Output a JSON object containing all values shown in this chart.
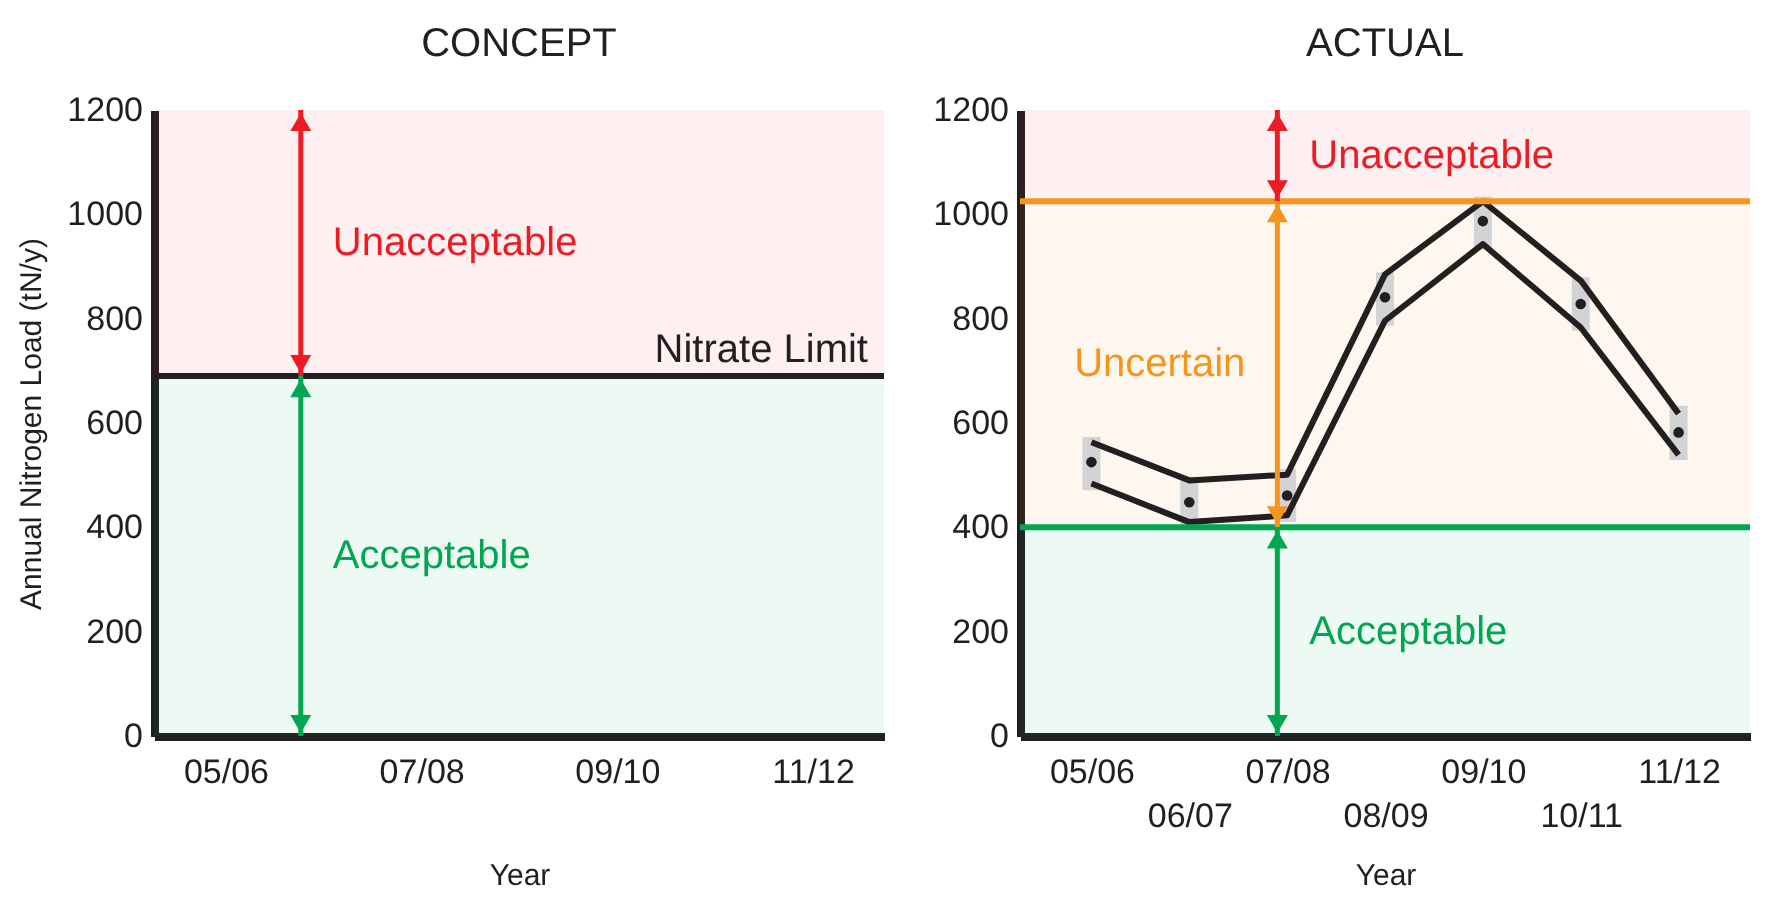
{
  "chart_data": [
    {
      "type": "line",
      "title": "CONCEPT",
      "xlabel": "Year",
      "ylabel": "Annual Nitrogen Load (tN/y)",
      "categories": [
        "05/06",
        null,
        "07/08",
        null,
        "09/10",
        null,
        "11/12"
      ],
      "ylim": [
        0,
        1200
      ],
      "yticks": [
        0,
        200,
        400,
        600,
        800,
        1000,
        1200
      ],
      "ref_lines": [
        {
          "axis": "y",
          "value": 690,
          "label": "Nitrate Limit",
          "color": "#231f20"
        }
      ],
      "bands": [
        {
          "axis": "y",
          "from": 690,
          "to": 1200,
          "label": "Unacceptable",
          "color": "#ed1c24"
        },
        {
          "axis": "y",
          "from": 0,
          "to": 690,
          "label": "Acceptable",
          "color": "#00a651"
        }
      ]
    },
    {
      "type": "line",
      "title": "ACTUAL",
      "xlabel": "Year",
      "categories": [
        "05/06",
        "06/07",
        "07/08",
        "08/09",
        "09/10",
        "10/11",
        "11/12"
      ],
      "ylim": [
        0,
        1200
      ],
      "yticks": [
        0,
        200,
        400,
        600,
        800,
        1000,
        1200
      ],
      "series": [
        {
          "type": "line",
          "color": "#231f20",
          "values": [
            563,
            490,
            501,
            885,
            1025,
            873,
            618
          ]
        },
        {
          "type": "line",
          "color": "#231f20",
          "values": [
            484,
            410,
            423,
            796,
            943,
            783,
            539
          ]
        },
        {
          "type": "scatter",
          "color": "#231f20",
          "values": [
            525,
            448,
            461,
            841,
            987,
            828,
            582
          ],
          "errors": [
            [
              471,
              573
            ],
            [
              395,
              497
            ],
            [
              410,
              512
            ],
            [
              787,
              889
            ],
            [
              932,
              1034
            ],
            [
              777,
              879
            ],
            [
              529,
              633
            ]
          ]
        }
      ],
      "ref_lines": [
        {
          "axis": "y",
          "value": 1025,
          "color": "#f7941d"
        },
        {
          "axis": "y",
          "value": 400,
          "color": "#00a651"
        }
      ],
      "bands": [
        {
          "axis": "y",
          "from": 1025,
          "to": 1200,
          "label": "Unacceptable",
          "color": "#ed1c24"
        },
        {
          "axis": "y",
          "from": 400,
          "to": 1025,
          "label": "Uncertain",
          "color": "#f7941d"
        },
        {
          "axis": "y",
          "from": 0,
          "to": 400,
          "label": "Acceptable",
          "color": "#00a651"
        }
      ]
    }
  ]
}
